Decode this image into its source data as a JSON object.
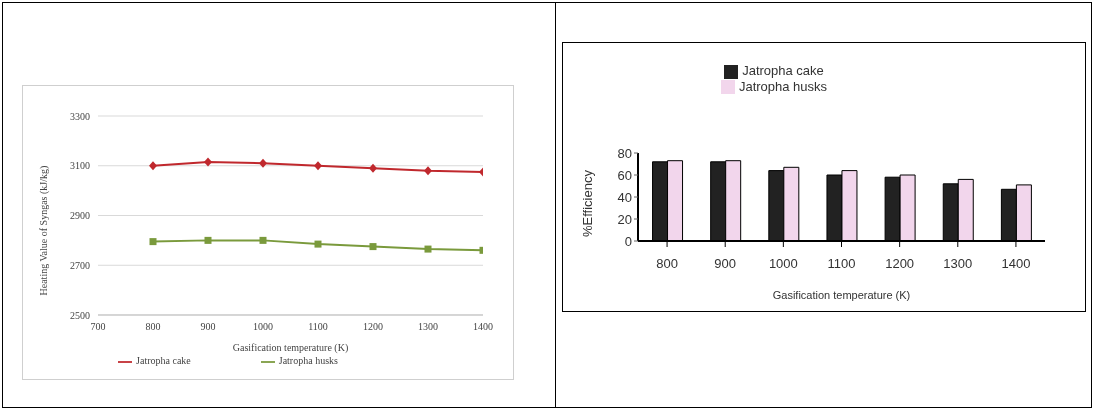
{
  "chart_data": [
    {
      "type": "line",
      "xlabel": "Gasification temperature (K)",
      "ylabel": "Heating Value of Syngas (kJ/kg)",
      "x": [
        800,
        900,
        1000,
        1100,
        1200,
        1300,
        1400
      ],
      "series": [
        {
          "name": "Jatropha cake",
          "color": "#c0282d",
          "marker": "diamond",
          "values": [
            3100,
            3115,
            3110,
            3100,
            3090,
            3080,
            3075
          ]
        },
        {
          "name": "Jatropha husks",
          "color": "#7a9a3c",
          "marker": "square",
          "values": [
            2795,
            2800,
            2800,
            2785,
            2775,
            2765,
            2760
          ]
        }
      ],
      "xlim": [
        700,
        1400
      ],
      "xticks": [
        700,
        800,
        900,
        1000,
        1100,
        1200,
        1300,
        1400
      ],
      "ylim": [
        2500,
        3300
      ],
      "yticks": [
        2500,
        2700,
        2900,
        3100,
        3300
      ],
      "grid": "y",
      "legend": "bottom"
    },
    {
      "type": "bar",
      "xlabel": "Gasification temperature (K)",
      "ylabel": "%Efficiency",
      "categories": [
        "800",
        "900",
        "1000",
        "1100",
        "1200",
        "1300",
        "1400"
      ],
      "series": [
        {
          "name": "Jatropha cake",
          "color": "#222222",
          "values": [
            72,
            72,
            64,
            60,
            58,
            52,
            47
          ]
        },
        {
          "name": "Jatropha husks",
          "color": "#f2d6ec",
          "values": [
            73,
            73,
            67,
            64,
            60,
            56,
            51
          ]
        }
      ],
      "ylim": [
        0,
        80
      ],
      "yticks": [
        0,
        20,
        40,
        60,
        80
      ],
      "grid": false,
      "legend": "top"
    }
  ]
}
